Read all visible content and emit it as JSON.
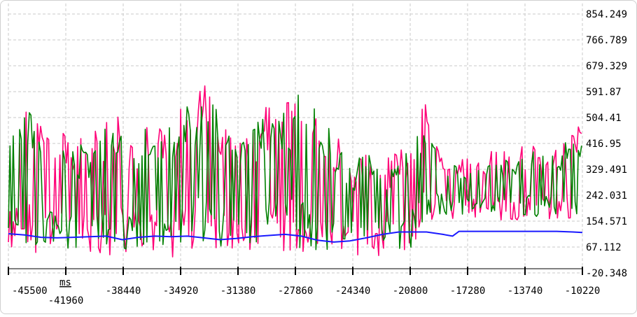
{
  "chart_data": {
    "type": "line",
    "x_unit": "ms",
    "x_ticks": [
      "-45500",
      "-41960",
      "-38440",
      "-34920",
      "-31380",
      "-27860",
      "-24340",
      "-20800",
      "-17280",
      "-13740",
      "-10220"
    ],
    "y_ticks": [
      "854.249",
      "766.789",
      "679.329",
      "591.87",
      "504.41",
      "416.95",
      "329.491",
      "242.031",
      "154.571",
      "67.112",
      "-20.348"
    ],
    "xlim": [
      -45500,
      -10220
    ],
    "ylim": [
      -20.348,
      854.249
    ],
    "grid": true,
    "y_axis_side": "right",
    "colors": {
      "pink": "#ff0077",
      "green": "#008000",
      "blue": "#1a1aff",
      "grid": "#c8c8c8"
    },
    "series": [
      {
        "color": "pink",
        "style": "dense oscillating band (min/max envelope)",
        "x": [
          -45500,
          -44500,
          -43500,
          -42500,
          -41500,
          -40500,
          -39500,
          -38500,
          -37500,
          -36500,
          -35500,
          -34500,
          -33500,
          -32500,
          -31500,
          -30500,
          -29500,
          -28500,
          -27500,
          -26500,
          -25500,
          -24500,
          -23500,
          -22500,
          -21500,
          -20800,
          -19800,
          -18800,
          -17800,
          -16800,
          -15800,
          -14800,
          -13800,
          -12800,
          -11800,
          -10800,
          -10220
        ],
        "low": [
          35,
          45,
          40,
          40,
          45,
          45,
          30,
          40,
          30,
          35,
          30,
          40,
          35,
          40,
          35,
          40,
          40,
          35,
          35,
          35,
          30,
          35,
          35,
          35,
          35,
          35,
          150,
          160,
          155,
          150,
          150,
          160,
          155,
          150,
          150,
          150,
          160
        ],
        "high": [
          470,
          550,
          560,
          470,
          420,
          450,
          530,
          510,
          470,
          520,
          510,
          580,
          620,
          540,
          450,
          480,
          580,
          580,
          620,
          540,
          470,
          380,
          400,
          380,
          400,
          430,
          600,
          400,
          360,
          380,
          400,
          390,
          420,
          400,
          400,
          480,
          480
        ]
      },
      {
        "color": "green",
        "style": "dense oscillating band (min/max envelope)",
        "x": [
          -45500,
          -44500,
          -43500,
          -42500,
          -41500,
          -40500,
          -39500,
          -38500,
          -37500,
          -36500,
          -35500,
          -34500,
          -33500,
          -32500,
          -31500,
          -30500,
          -29500,
          -28500,
          -27500,
          -26500,
          -25500,
          -24500,
          -23500,
          -22500,
          -21500,
          -20800,
          -19800,
          -18800,
          -17800,
          -16800,
          -15800,
          -14800,
          -13800,
          -12800,
          -11800,
          -10800,
          -10220
        ],
        "low": [
          60,
          65,
          60,
          60,
          65,
          60,
          55,
          60,
          55,
          60,
          55,
          60,
          55,
          60,
          55,
          60,
          60,
          55,
          60,
          55,
          55,
          60,
          55,
          55,
          55,
          60,
          170,
          175,
          170,
          165,
          165,
          175,
          170,
          165,
          165,
          170,
          175
        ],
        "high": [
          450,
          520,
          540,
          450,
          400,
          430,
          500,
          490,
          450,
          500,
          490,
          560,
          600,
          520,
          430,
          460,
          560,
          560,
          600,
          520,
          450,
          360,
          380,
          360,
          380,
          410,
          560,
          380,
          340,
          360,
          380,
          370,
          400,
          380,
          380,
          460,
          460
        ]
      },
      {
        "color": "blue",
        "style": "smooth line",
        "x": [
          -45500,
          -44500,
          -43500,
          -42500,
          -41500,
          -40500,
          -39500,
          -38500,
          -37500,
          -36500,
          -35500,
          -34500,
          -33500,
          -32500,
          -31500,
          -30500,
          -29500,
          -28500,
          -27500,
          -26500,
          -25500,
          -24500,
          -23500,
          -22500,
          -21500,
          -20800,
          -19800,
          -18800,
          -18200,
          -17800,
          -16800,
          -15800,
          -14800,
          -13800,
          -12800,
          -11800,
          -10800,
          -10220
        ],
        "y": [
          112,
          108,
          100,
          98,
          100,
          102,
          104,
          92,
          100,
          104,
          102,
          104,
          98,
          92,
          96,
          102,
          106,
          110,
          104,
          90,
          84,
          88,
          98,
          110,
          118,
          118,
          118,
          110,
          104,
          120,
          120,
          120,
          120,
          120,
          120,
          120,
          118,
          116
        ]
      }
    ]
  }
}
